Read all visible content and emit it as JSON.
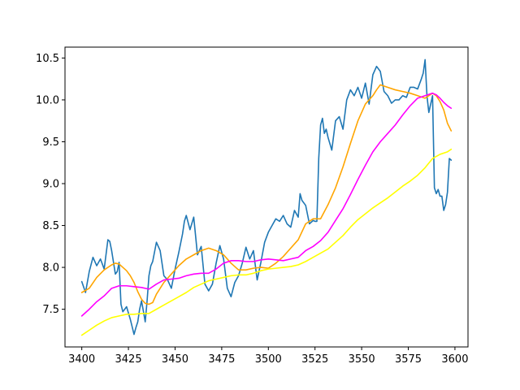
{
  "chart_data": {
    "type": "line",
    "title": "",
    "xlabel": "",
    "ylabel": "",
    "xlim": [
      3391,
      3607
    ],
    "ylim": [
      7.05,
      10.63
    ],
    "x_ticks": [
      3400,
      3425,
      3450,
      3475,
      3500,
      3525,
      3550,
      3575,
      3600
    ],
    "y_ticks": [
      7.5,
      8.0,
      8.5,
      9.0,
      9.5,
      10.0,
      10.5
    ],
    "grid": false,
    "legend": "none",
    "series": [
      {
        "color": "#1f77b4",
        "x": [
          3400,
          3402,
          3404,
          3406,
          3408,
          3410,
          3412,
          3414,
          3415,
          3416,
          3418,
          3419,
          3420,
          3421,
          3422,
          3424,
          3426,
          3428,
          3429,
          3430,
          3431,
          3432,
          3433,
          3434,
          3435,
          3436,
          3437,
          3438,
          3440,
          3442,
          3444,
          3446,
          3448,
          3450,
          3452,
          3454,
          3455,
          3456,
          3458,
          3460,
          3462,
          3464,
          3466,
          3468,
          3470,
          3472,
          3474,
          3476,
          3478,
          3480,
          3482,
          3484,
          3486,
          3488,
          3490,
          3492,
          3494,
          3496,
          3498,
          3500,
          3502,
          3504,
          3506,
          3508,
          3510,
          3512,
          3514,
          3516,
          3517,
          3518,
          3520,
          3522,
          3524,
          3525,
          3526,
          3527,
          3528,
          3529,
          3530,
          3531,
          3532,
          3534,
          3536,
          3538,
          3540,
          3542,
          3544,
          3546,
          3548,
          3550,
          3552,
          3554,
          3556,
          3558,
          3560,
          3562,
          3564,
          3566,
          3568,
          3570,
          3572,
          3574,
          3576,
          3578,
          3580,
          3582,
          3583,
          3584,
          3585,
          3586,
          3587,
          3588,
          3589,
          3590,
          3591,
          3592,
          3593,
          3594,
          3595,
          3596,
          3597,
          3598
        ],
        "y": [
          7.83,
          7.7,
          7.95,
          8.12,
          8.02,
          8.1,
          7.98,
          8.33,
          8.31,
          8.2,
          7.92,
          7.95,
          8.06,
          7.56,
          7.47,
          7.53,
          7.38,
          7.2,
          7.28,
          7.35,
          7.5,
          7.6,
          7.48,
          7.35,
          7.6,
          7.9,
          8.02,
          8.07,
          8.3,
          8.2,
          7.9,
          7.85,
          7.75,
          7.98,
          8.18,
          8.4,
          8.55,
          8.62,
          8.45,
          8.6,
          8.15,
          8.25,
          7.8,
          7.72,
          7.8,
          8.05,
          8.26,
          8.1,
          7.75,
          7.65,
          7.82,
          7.9,
          8.05,
          8.24,
          8.1,
          8.2,
          7.85,
          8.06,
          8.3,
          8.42,
          8.5,
          8.58,
          8.55,
          8.62,
          8.52,
          8.48,
          8.68,
          8.6,
          8.88,
          8.8,
          8.74,
          8.52,
          8.56,
          8.55,
          8.55,
          9.3,
          9.7,
          9.78,
          9.6,
          9.65,
          9.55,
          9.4,
          9.75,
          9.8,
          9.65,
          10.0,
          10.12,
          10.05,
          10.15,
          10.02,
          10.2,
          9.95,
          10.3,
          10.4,
          10.34,
          10.1,
          10.05,
          9.96,
          10.0,
          10.0,
          10.05,
          10.03,
          10.15,
          10.15,
          10.13,
          10.25,
          10.32,
          10.48,
          10.05,
          9.85,
          9.95,
          10.05,
          8.95,
          8.88,
          8.93,
          8.85,
          8.85,
          8.68,
          8.75,
          8.9,
          9.3,
          9.28
        ]
      },
      {
        "color": "#ffa500",
        "x": [
          3400,
          3404,
          3408,
          3412,
          3416,
          3418,
          3420,
          3424,
          3426,
          3428,
          3430,
          3432,
          3434,
          3436,
          3438,
          3440,
          3444,
          3448,
          3452,
          3456,
          3460,
          3464,
          3468,
          3472,
          3476,
          3480,
          3484,
          3488,
          3492,
          3496,
          3500,
          3504,
          3508,
          3512,
          3516,
          3520,
          3524,
          3528,
          3532,
          3536,
          3540,
          3544,
          3548,
          3552,
          3556,
          3558,
          3560,
          3564,
          3568,
          3572,
          3576,
          3580,
          3584,
          3588,
          3590,
          3592,
          3594,
          3596,
          3598
        ],
        "y": [
          7.7,
          7.75,
          7.88,
          7.97,
          8.03,
          8.05,
          8.04,
          7.96,
          7.9,
          7.82,
          7.71,
          7.62,
          7.57,
          7.56,
          7.58,
          7.68,
          7.82,
          7.92,
          8.02,
          8.1,
          8.15,
          8.2,
          8.23,
          8.2,
          8.15,
          8.05,
          7.97,
          7.97,
          7.99,
          8.0,
          7.99,
          8.05,
          8.13,
          8.23,
          8.33,
          8.52,
          8.58,
          8.58,
          8.75,
          8.95,
          9.2,
          9.48,
          9.75,
          9.95,
          10.05,
          10.12,
          10.18,
          10.15,
          10.12,
          10.1,
          10.08,
          10.05,
          10.02,
          10.08,
          10.05,
          9.98,
          9.88,
          9.72,
          9.63
        ]
      },
      {
        "color": "#ff00ff",
        "x": [
          3400,
          3404,
          3408,
          3412,
          3416,
          3420,
          3424,
          3428,
          3432,
          3436,
          3440,
          3444,
          3448,
          3452,
          3456,
          3460,
          3464,
          3468,
          3472,
          3476,
          3480,
          3484,
          3488,
          3492,
          3496,
          3500,
          3504,
          3508,
          3512,
          3516,
          3520,
          3524,
          3528,
          3532,
          3536,
          3540,
          3544,
          3548,
          3552,
          3556,
          3560,
          3564,
          3568,
          3572,
          3576,
          3580,
          3584,
          3588,
          3590,
          3592,
          3594,
          3596,
          3598
        ],
        "y": [
          7.42,
          7.5,
          7.59,
          7.66,
          7.75,
          7.78,
          7.78,
          7.77,
          7.76,
          7.74,
          7.8,
          7.85,
          7.86,
          7.87,
          7.9,
          7.92,
          7.93,
          7.93,
          7.98,
          8.05,
          8.08,
          8.08,
          8.07,
          8.07,
          8.09,
          8.1,
          8.09,
          8.08,
          8.1,
          8.12,
          8.2,
          8.25,
          8.32,
          8.42,
          8.56,
          8.7,
          8.87,
          9.05,
          9.22,
          9.38,
          9.5,
          9.6,
          9.7,
          9.82,
          9.93,
          10.02,
          10.05,
          10.08,
          10.06,
          10.02,
          9.97,
          9.93,
          9.9
        ]
      },
      {
        "color": "#ffff00",
        "x": [
          3400,
          3404,
          3408,
          3412,
          3416,
          3420,
          3424,
          3428,
          3432,
          3436,
          3440,
          3444,
          3448,
          3452,
          3456,
          3460,
          3464,
          3468,
          3472,
          3476,
          3480,
          3484,
          3488,
          3492,
          3496,
          3500,
          3504,
          3508,
          3512,
          3516,
          3520,
          3524,
          3528,
          3532,
          3536,
          3540,
          3544,
          3548,
          3552,
          3556,
          3560,
          3564,
          3568,
          3572,
          3576,
          3580,
          3584,
          3588,
          3592,
          3596,
          3598
        ],
        "y": [
          7.19,
          7.25,
          7.31,
          7.36,
          7.4,
          7.42,
          7.44,
          7.44,
          7.45,
          7.45,
          7.5,
          7.55,
          7.6,
          7.65,
          7.7,
          7.76,
          7.8,
          7.84,
          7.86,
          7.88,
          7.9,
          7.91,
          7.91,
          7.93,
          7.96,
          7.98,
          7.99,
          8.0,
          8.01,
          8.03,
          8.07,
          8.12,
          8.17,
          8.22,
          8.3,
          8.38,
          8.48,
          8.57,
          8.64,
          8.71,
          8.77,
          8.83,
          8.9,
          8.97,
          9.03,
          9.1,
          9.19,
          9.3,
          9.35,
          9.38,
          9.41
        ]
      }
    ]
  }
}
